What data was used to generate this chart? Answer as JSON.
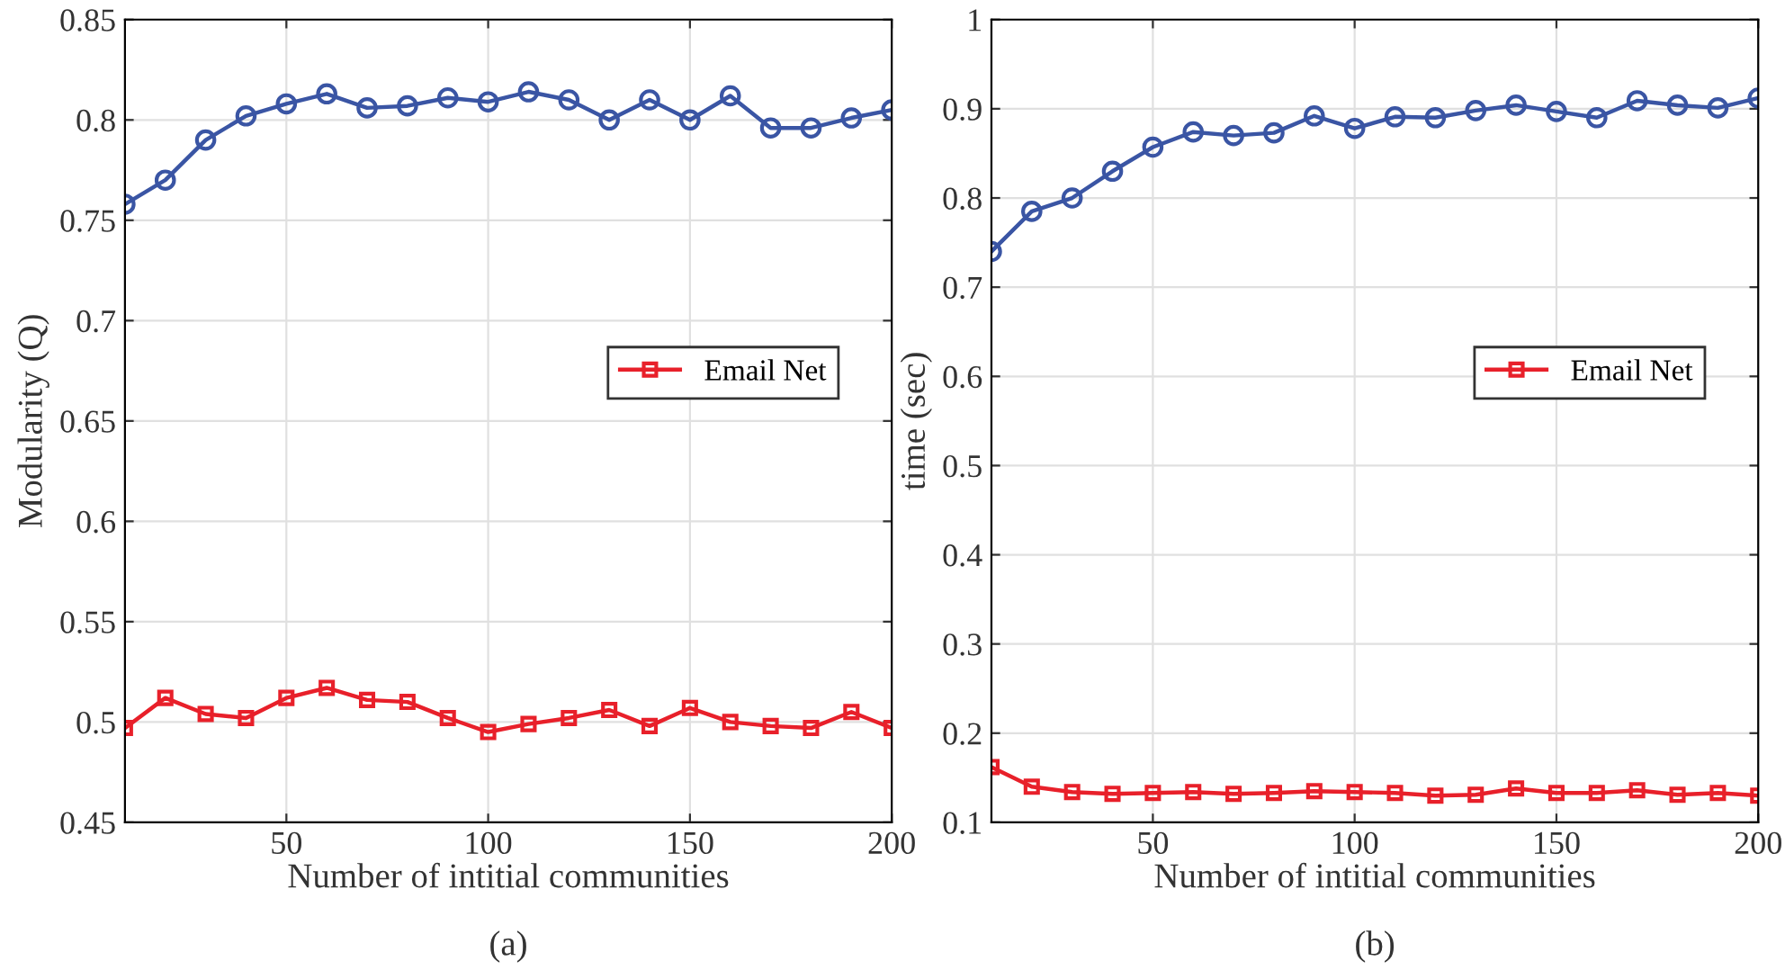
{
  "chart_data": [
    {
      "type": "line",
      "ylabel": "Modularity (Q)",
      "xlabel": "Number of intitial communities",
      "annotations": [
        "(a)"
      ],
      "x": [
        10,
        20,
        30,
        40,
        50,
        60,
        70,
        80,
        90,
        100,
        110,
        120,
        130,
        140,
        150,
        160,
        170,
        180,
        190,
        200
      ],
      "series": [
        {
          "color": "#3a55a4",
          "marker": "circle",
          "values": [
            0.758,
            0.77,
            0.79,
            0.802,
            0.808,
            0.813,
            0.806,
            0.807,
            0.811,
            0.809,
            0.814,
            0.81,
            0.8,
            0.81,
            0.8,
            0.812,
            0.796,
            0.796,
            0.801,
            0.805
          ]
        },
        {
          "name": "Email Net",
          "color": "#e8202a",
          "marker": "square",
          "values": [
            0.497,
            0.512,
            0.504,
            0.502,
            0.512,
            0.517,
            0.511,
            0.51,
            0.502,
            0.495,
            0.499,
            0.502,
            0.506,
            0.498,
            0.507,
            0.5,
            0.498,
            0.497,
            0.505,
            0.497
          ]
        }
      ],
      "xlim": [
        10,
        200
      ],
      "xticks": [
        50,
        100,
        150,
        200
      ],
      "ylim": [
        0.45,
        0.85
      ],
      "yticks": [
        0.45,
        0.5,
        0.55,
        0.6,
        0.65,
        0.7,
        0.75,
        0.8,
        0.85
      ],
      "grid": true,
      "legend": "center right",
      "line_style": "solid"
    },
    {
      "type": "line",
      "ylabel": "time (sec)",
      "xlabel": "Number of intitial communities",
      "annotations": [
        "(b)"
      ],
      "x": [
        10,
        20,
        30,
        40,
        50,
        60,
        70,
        80,
        90,
        100,
        110,
        120,
        130,
        140,
        150,
        160,
        170,
        180,
        190,
        200
      ],
      "series": [
        {
          "color": "#3a55a4",
          "marker": "circle",
          "values": [
            0.74,
            0.785,
            0.8,
            0.83,
            0.857,
            0.874,
            0.87,
            0.873,
            0.892,
            0.878,
            0.891,
            0.89,
            0.898,
            0.904,
            0.897,
            0.89,
            0.909,
            0.904,
            0.901,
            0.912
          ]
        },
        {
          "name": "Email Net",
          "color": "#e8202a",
          "marker": "square",
          "values": [
            0.162,
            0.14,
            0.134,
            0.132,
            0.133,
            0.134,
            0.132,
            0.133,
            0.135,
            0.134,
            0.133,
            0.13,
            0.131,
            0.138,
            0.133,
            0.133,
            0.136,
            0.131,
            0.133,
            0.13
          ]
        }
      ],
      "xlim": [
        10,
        200
      ],
      "xticks": [
        50,
        100,
        150,
        200
      ],
      "ylim": [
        0.1,
        1
      ],
      "yticks": [
        0.1,
        0.2,
        0.3,
        0.4,
        0.5,
        0.6,
        0.7,
        0.8,
        0.9,
        1
      ],
      "grid": true,
      "legend": "center right",
      "line_style": "solid"
    }
  ]
}
